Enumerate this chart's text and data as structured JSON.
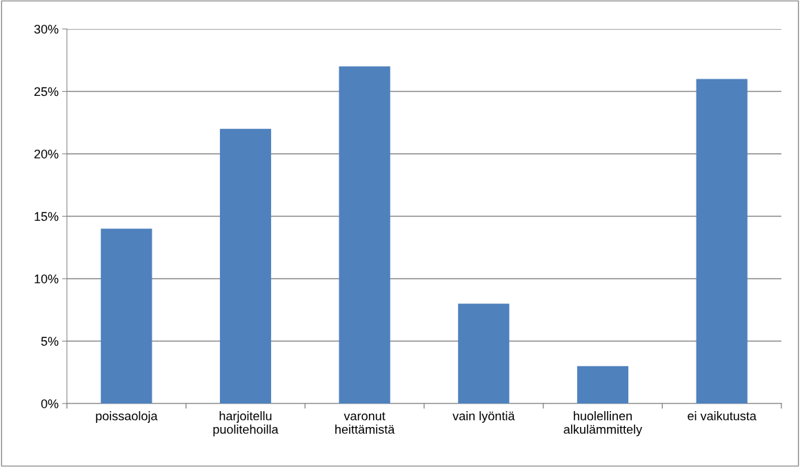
{
  "chart_data": {
    "type": "bar",
    "categories": [
      "poissaoloja",
      "harjoitellu\npuolitehoilla",
      "varonut\nheittämistä",
      "vain lyöntiä",
      "huolellinen\nalkulämmittely",
      "ei vaikutusta"
    ],
    "values": [
      14,
      22,
      27,
      8,
      3,
      26
    ],
    "color": "#4f81bd",
    "ylim": [
      0,
      30
    ],
    "yticks": [
      {
        "value": 0,
        "label": "0%"
      },
      {
        "value": 5,
        "label": "5%"
      },
      {
        "value": 10,
        "label": "10%"
      },
      {
        "value": 15,
        "label": "15%"
      },
      {
        "value": 20,
        "label": "20%"
      },
      {
        "value": 25,
        "label": "25%"
      },
      {
        "value": 30,
        "label": "30%"
      }
    ],
    "grid": "y"
  }
}
